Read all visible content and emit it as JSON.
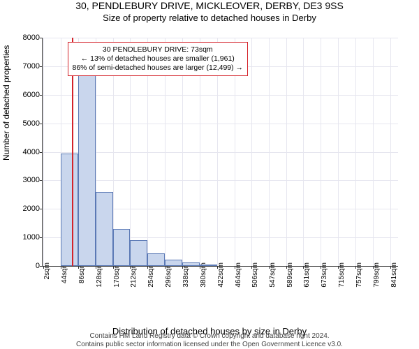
{
  "chart": {
    "type": "histogram",
    "title": "30, PENDLEBURY DRIVE, MICKLEOVER, DERBY, DE3 9SS",
    "subtitle": "Size of property relative to detached houses in Derby",
    "xlabel": "Distribution of detached houses by size in Derby",
    "ylabel": "Number of detached properties",
    "background_color": "#ffffff",
    "grid_color": "#e6e6ef",
    "axis_color": "#333333",
    "bar_fill": "#c9d6ed",
    "bar_stroke": "#5b79b5",
    "marker_color": "#d4232a",
    "xlim": [
      0,
      860
    ],
    "ylim": [
      0,
      8000
    ],
    "yticks": [
      0,
      1000,
      2000,
      3000,
      4000,
      5000,
      6000,
      7000,
      8000
    ],
    "xticks": [
      2,
      44,
      86,
      128,
      170,
      212,
      254,
      296,
      338,
      380,
      422,
      464,
      506,
      547,
      589,
      631,
      673,
      715,
      757,
      799,
      841
    ],
    "xtick_suffix": "sqm",
    "bin_left_edges": [
      2,
      44,
      86,
      128,
      170,
      212,
      254,
      296,
      338,
      380
    ],
    "bin_width": 42,
    "values": [
      0,
      3950,
      6750,
      2600,
      1300,
      900,
      450,
      230,
      120,
      60
    ],
    "marker_at": 73,
    "annotation": {
      "lines": [
        "30 PENDLEBURY DRIVE: 73sqm",
        "← 13% of detached houses are smaller (1,961)",
        "86% of semi-detached houses are larger (12,499) →"
      ],
      "border_color": "#d4232a",
      "top_offset": 6,
      "left_sqm": 60,
      "width_sqm": 490
    },
    "footer1": "Contains HM Land Registry data © Crown copyright and database right 2024.",
    "footer2": "Contains public sector information licensed under the Open Government Licence v3.0.",
    "title_fontsize": 14,
    "subtitle_fontsize": 13,
    "tick_fontsize": 11,
    "xtick_fontsize": 10
  }
}
